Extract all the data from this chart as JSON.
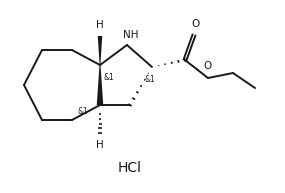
{
  "background_color": "#ffffff",
  "line_color": "#1a1a1a",
  "text_color": "#1a1a1a",
  "hcl_text": "HCl",
  "nh_text": "NH",
  "o_carbonyl": "O",
  "o_ester": "O",
  "h_top_text": "H",
  "h_bot_text": "H",
  "stereo1": "&1",
  "stereo2": "&1",
  "stereo3": "&1",
  "line_width": 1.4
}
